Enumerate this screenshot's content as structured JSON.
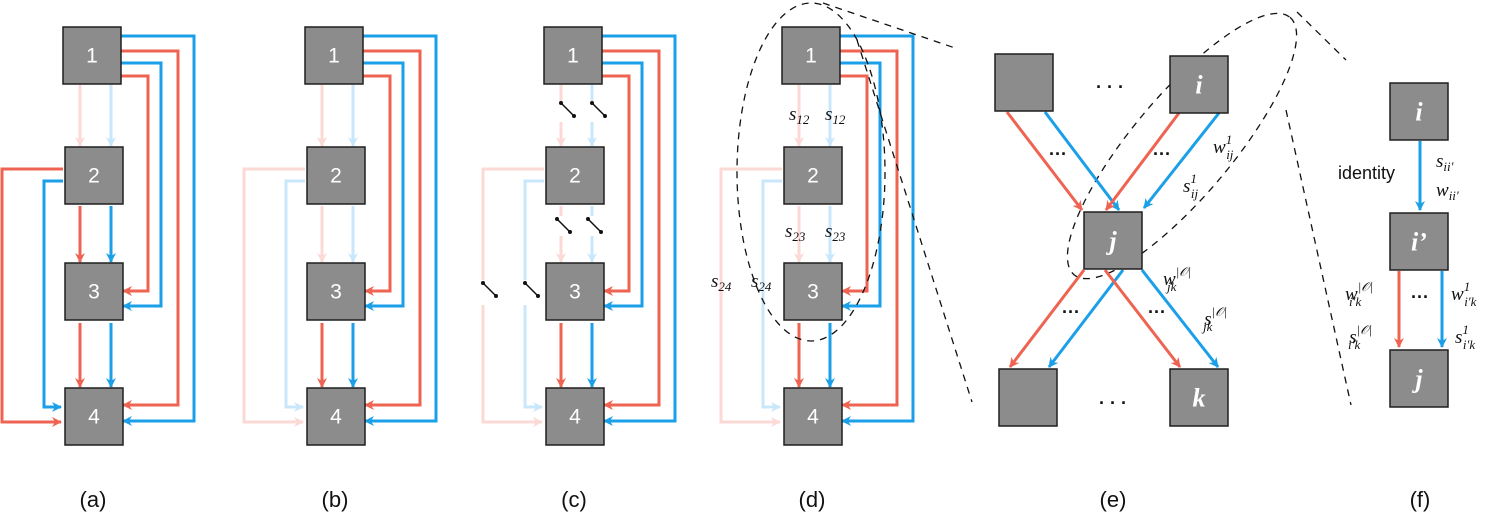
{
  "colors": {
    "red": "#ee6352",
    "blue": "#1a9fe8",
    "red_faded": "#fbd9d4",
    "blue_faded": "#c9e7fb",
    "node": "#8c8c8c"
  },
  "panels": [
    {
      "caption": "(a)",
      "nodes": [
        "1",
        "2",
        "3",
        "4"
      ]
    },
    {
      "caption": "(b)",
      "nodes": [
        "1",
        "2",
        "3",
        "4"
      ]
    },
    {
      "caption": "(c)",
      "nodes": [
        "1",
        "2",
        "3",
        "4"
      ]
    },
    {
      "caption": "(d)",
      "nodes": [
        "1",
        "2",
        "3",
        "4"
      ],
      "labels": {
        "s12": {
          "base": "s",
          "sub": "12"
        },
        "s23": {
          "base": "s",
          "sub": "23"
        },
        "s24": {
          "base": "s",
          "sub": "24"
        }
      }
    }
  ],
  "panel_e": {
    "caption": "(e)",
    "nodes": {
      "top_left": "",
      "i": "i",
      "j": "j",
      "bottom_left": "",
      "k": "k"
    },
    "ellipsis": "· · ·",
    "small_ellipsis": "···",
    "labels": {
      "w_ij": {
        "base": "w",
        "sub": "ij",
        "sup": "1"
      },
      "s_ij": {
        "base": "s",
        "sub": "ij",
        "sup": "1"
      },
      "w_jk": {
        "base": "w",
        "sub": "jk",
        "sup": "|𝒪|"
      },
      "s_jk": {
        "base": "s",
        "sub": "jk",
        "sup": "|𝒪|"
      }
    }
  },
  "panel_f": {
    "caption": "(f)",
    "nodes": {
      "i": "i",
      "i_prime": "i’",
      "j": "j"
    },
    "identity": "identity",
    "small_ellipsis": "···",
    "labels": {
      "s_ii": {
        "base": "s",
        "sub": "ii′"
      },
      "w_ii": {
        "base": "w",
        "sub": "ii′"
      },
      "w_ik_O": {
        "base": "w",
        "sub": "i′k",
        "sup": "|𝒪|"
      },
      "s_ik_O": {
        "base": "s",
        "sub": "i′k",
        "sup": "|𝒪|"
      },
      "w_ik_1": {
        "base": "w",
        "sub": "i′k",
        "sup": "1"
      },
      "s_ik_1": {
        "base": "s",
        "sub": "i′k",
        "sup": "1"
      }
    }
  }
}
